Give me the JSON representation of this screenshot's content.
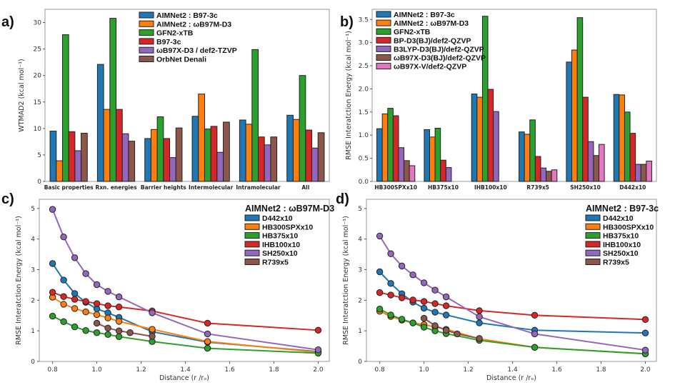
{
  "chart_data": [
    {
      "panel": "a)",
      "type": "bar",
      "title": "",
      "xlabel": "",
      "ylabel": "WTMAD2 (kcal mol⁻¹)",
      "ylim": [
        0,
        32.5
      ],
      "yticks": [
        0,
        5,
        10,
        15,
        20,
        25,
        30
      ],
      "grid": false,
      "legend_position": "top-center",
      "categories": [
        "Basic properties",
        "Rxn. energies",
        "Barrier heights",
        "Intermolecular",
        "Intramolecular",
        "All"
      ],
      "series": [
        {
          "name": "AIMNet2 : B97-3c",
          "color": "#1f77b4",
          "values": [
            9.5,
            22.1,
            8.1,
            12.3,
            11.6,
            12.5
          ]
        },
        {
          "name": "AIMNet2 : ωB97M-D3",
          "color": "#ff7f0e",
          "values": [
            3.9,
            13.6,
            9.8,
            16.5,
            10.8,
            11.7
          ]
        },
        {
          "name": "GFN2-xTB",
          "color": "#2ca02c",
          "values": [
            27.7,
            30.8,
            12.2,
            9.9,
            24.9,
            20.0
          ]
        },
        {
          "name": "B97-3c",
          "color": "#d62728",
          "values": [
            9.4,
            13.6,
            8.1,
            10.4,
            8.4,
            9.7
          ]
        },
        {
          "name": "ωB97X-D3 / def2-TZVP",
          "color": "#9467bd",
          "values": [
            5.8,
            9.0,
            4.5,
            5.5,
            6.9,
            6.3
          ]
        },
        {
          "name": "OrbNet Denali",
          "color": "#8c564b",
          "values": [
            9.1,
            7.6,
            10.1,
            11.2,
            8.4,
            9.2
          ]
        }
      ]
    },
    {
      "panel": "b)",
      "type": "bar",
      "title": "",
      "xlabel": "",
      "ylabel": "RMSE Interatction Energy (kcal mol⁻¹)",
      "ylim": [
        0,
        3.72
      ],
      "yticks": [
        0.0,
        0.5,
        1.0,
        1.5,
        2.0,
        2.5,
        3.0,
        3.5
      ],
      "grid": false,
      "legend_position": "top-left",
      "categories": [
        "HB300SPXx10",
        "HB375x10",
        "IHB100x10",
        "R739x5",
        "SH250x10",
        "D442x10"
      ],
      "series": [
        {
          "name": "AIMNet2 : B97-3c",
          "color": "#1f77b4",
          "values": [
            1.14,
            1.12,
            1.89,
            1.07,
            2.58,
            1.88
          ]
        },
        {
          "name": "AIMNet2 : ωB97M-D3",
          "color": "#ff7f0e",
          "values": [
            1.46,
            0.96,
            1.82,
            1.02,
            2.84,
            1.87
          ]
        },
        {
          "name": "GFN2-xTB",
          "color": "#2ca02c",
          "values": [
            1.58,
            1.15,
            3.57,
            1.33,
            3.54,
            1.5
          ]
        },
        {
          "name": "BP-D3(BJ)/def2-QZVP",
          "color": "#d62728",
          "values": [
            1.42,
            0.46,
            1.99,
            0.54,
            1.82,
            1.04
          ]
        },
        {
          "name": "B3LYP-D3(BJ)/def2-QZVP",
          "color": "#9467bd",
          "values": [
            0.73,
            0.3,
            1.51,
            0.29,
            0.86,
            0.37
          ]
        },
        {
          "name": "ωB97X-D3(BJ)/def2-QZVP",
          "color": "#8c564b",
          "values": [
            0.45,
            null,
            null,
            0.22,
            0.56,
            0.37
          ]
        },
        {
          "name": "ωB97X-V/def2-QZVP",
          "color": "#e377c2",
          "values": [
            0.34,
            null,
            null,
            0.25,
            0.8,
            0.44
          ]
        }
      ]
    },
    {
      "panel": "c)",
      "type": "line",
      "title": "",
      "xlabel": "Distance (r /rₒ)",
      "ylabel": "RMSE Interatction Energy (kcal mol⁻¹)",
      "xlim": [
        0.74,
        2.05
      ],
      "ylim": [
        0,
        5.3
      ],
      "xticks": [
        "0.8",
        "1.0",
        "1.2",
        "1.4",
        "1.6",
        "1.8",
        "2.0"
      ],
      "yticks": [
        "0",
        "1",
        "2",
        "3",
        "4",
        "5"
      ],
      "grid": false,
      "legend_position": "top-right",
      "legend_title": "AIMNet2 : ωB97M-D3",
      "series": [
        {
          "name": "D442x10",
          "color": "#1f77b4",
          "x": [
            0.8,
            0.85,
            0.9,
            0.95,
            1.0,
            1.05,
            1.1,
            1.25,
            1.5,
            2.0
          ],
          "y": [
            3.2,
            2.66,
            2.22,
            1.93,
            1.72,
            1.59,
            1.44,
            0.97,
            0.63,
            0.32
          ]
        },
        {
          "name": "HB300SPXx10",
          "color": "#ff7f0e",
          "x": [
            0.8,
            0.85,
            0.9,
            0.95,
            1.0,
            1.05,
            1.1,
            1.25,
            1.5,
            2.0
          ],
          "y": [
            2.1,
            1.87,
            1.73,
            1.62,
            1.53,
            1.42,
            1.31,
            1.05,
            0.65,
            0.3
          ]
        },
        {
          "name": "HB375x10",
          "color": "#2ca02c",
          "x": [
            0.8,
            0.85,
            0.9,
            0.95,
            1.0,
            1.05,
            1.1,
            1.25,
            1.5,
            2.0
          ],
          "y": [
            1.48,
            1.3,
            1.13,
            1.01,
            0.94,
            0.88,
            0.81,
            0.65,
            0.43,
            0.27
          ]
        },
        {
          "name": "IHB100x10",
          "color": "#d62728",
          "x": [
            0.8,
            0.85,
            0.9,
            0.95,
            1.0,
            1.05,
            1.1,
            1.25,
            1.5,
            2.0
          ],
          "y": [
            2.26,
            2.12,
            2.03,
            1.96,
            1.89,
            1.82,
            1.78,
            1.65,
            1.25,
            1.02
          ]
        },
        {
          "name": "SH250x10",
          "color": "#9467bd",
          "x": [
            0.8,
            0.85,
            0.9,
            0.95,
            1.0,
            1.05,
            1.1,
            1.25,
            1.5,
            2.0
          ],
          "y": [
            4.97,
            4.07,
            3.39,
            2.87,
            2.51,
            2.29,
            2.11,
            1.59,
            0.9,
            0.38
          ]
        },
        {
          "name": "R739x5",
          "color": "#8c564b",
          "x": [
            1.0,
            1.05,
            1.1,
            1.15,
            1.25
          ],
          "y": [
            1.25,
            1.09,
            1.0,
            0.94,
            0.82
          ]
        }
      ]
    },
    {
      "panel": "d)",
      "type": "line",
      "title": "",
      "xlabel": "Distance (r /rₒ)",
      "ylabel": "RMSE Interatction Energy (kcal mol⁻¹)",
      "xlim": [
        0.74,
        2.05
      ],
      "ylim": [
        0,
        5.3
      ],
      "xticks": [
        "0.8",
        "1.0",
        "1.2",
        "1.4",
        "1.6",
        "1.8",
        "2.0"
      ],
      "yticks": [
        "0",
        "1",
        "2",
        "3",
        "4",
        "5"
      ],
      "grid": false,
      "legend_position": "top-right",
      "legend_title": "AIMNet2 : B97-3c",
      "series": [
        {
          "name": "D442x10",
          "color": "#1f77b4",
          "x": [
            0.8,
            0.85,
            0.9,
            0.95,
            1.0,
            1.05,
            1.1,
            1.25,
            1.5,
            2.0
          ],
          "y": [
            2.93,
            2.55,
            2.21,
            1.94,
            1.74,
            1.61,
            1.52,
            1.26,
            1.02,
            0.93
          ]
        },
        {
          "name": "HB300SPXx10",
          "color": "#ff7f0e",
          "x": [
            0.8,
            0.85,
            0.9,
            0.95,
            1.0,
            1.05,
            1.1,
            1.25,
            1.5,
            2.0
          ],
          "y": [
            1.64,
            1.47,
            1.35,
            1.26,
            1.2,
            1.13,
            1.05,
            0.74,
            0.46,
            0.25
          ]
        },
        {
          "name": "HB375x10",
          "color": "#2ca02c",
          "x": [
            0.8,
            0.85,
            0.9,
            0.95,
            1.0,
            1.05,
            1.1,
            1.25,
            1.5,
            2.0
          ],
          "y": [
            1.71,
            1.52,
            1.38,
            1.26,
            1.12,
            1.0,
            0.91,
            0.69,
            0.46,
            0.25
          ]
        },
        {
          "name": "IHB100x10",
          "color": "#d62728",
          "x": [
            0.8,
            0.85,
            0.9,
            0.95,
            1.0,
            1.05,
            1.1,
            1.25,
            1.5,
            2.0
          ],
          "y": [
            2.25,
            2.17,
            2.08,
            2.01,
            1.96,
            1.89,
            1.82,
            1.66,
            1.51,
            1.37
          ]
        },
        {
          "name": "SH250x10",
          "color": "#9467bd",
          "x": [
            0.8,
            0.85,
            0.9,
            0.95,
            1.0,
            1.05,
            1.1,
            1.25,
            1.5,
            2.0
          ],
          "y": [
            4.1,
            3.52,
            3.12,
            2.83,
            2.57,
            2.33,
            2.11,
            1.46,
            0.9,
            0.37
          ]
        },
        {
          "name": "R739x5",
          "color": "#8c564b",
          "x": [
            1.0,
            1.05,
            1.1,
            1.15,
            1.25
          ],
          "y": [
            1.41,
            1.17,
            1.02,
            0.9,
            0.75
          ]
        }
      ]
    }
  ]
}
